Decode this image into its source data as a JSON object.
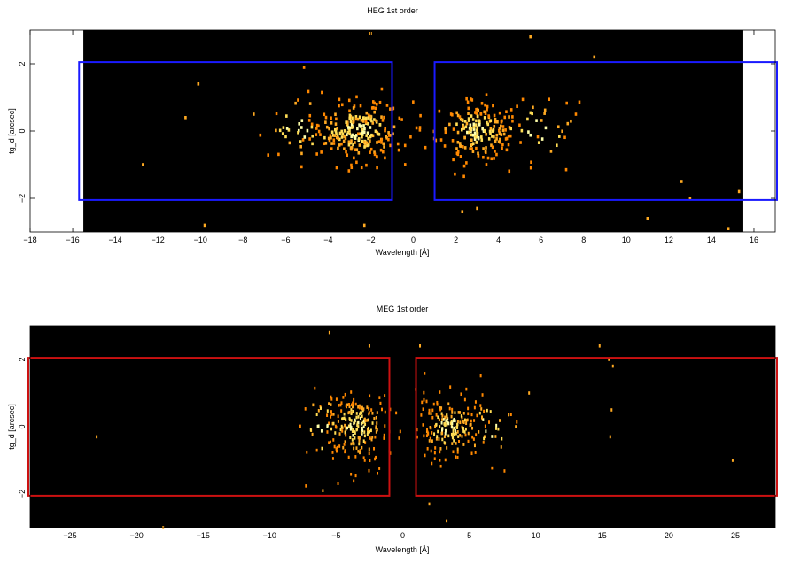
{
  "chart_data": [
    {
      "type": "heatmap",
      "title": "HEG 1st order",
      "xlabel": "Wavelength [Å]",
      "ylabel": "tg_d [arcsec]",
      "xlim": [
        -18,
        17
      ],
      "ylim": [
        -3,
        3
      ],
      "x_ticks": [
        -18,
        -16,
        -14,
        -12,
        -10,
        -8,
        -6,
        -4,
        -2,
        0,
        2,
        4,
        6,
        8,
        10,
        12,
        14,
        16
      ],
      "x_tick_labels": [
        "−18",
        "−16",
        "−14",
        "−12",
        "−10",
        "−8",
        "−6",
        "−4",
        "−2",
        "0",
        "2",
        "4",
        "6",
        "8",
        "10",
        "12",
        "14",
        "16"
      ],
      "y_ticks": [
        -2,
        0,
        2
      ],
      "y_tick_labels": [
        "−2",
        "0",
        "2"
      ],
      "data_extent_x": [
        -15.5,
        15.5
      ],
      "regions": [
        {
          "x": [
            -15.7,
            -1.0
          ],
          "y": [
            -2.05,
            2.05
          ]
        },
        {
          "x": [
            1.0,
            17.5
          ],
          "y": [
            -2.05,
            2.05
          ]
        }
      ],
      "region_color": "#1a1aff",
      "clusters": [
        {
          "x_center": -2.6,
          "x_spread": 1.1,
          "y_spread": 0.45,
          "count": 230
        },
        {
          "x_center": 2.9,
          "x_spread": 0.9,
          "y_spread": 0.45,
          "count": 200
        },
        {
          "x_center": -5.5,
          "x_spread": 1.4,
          "y_spread": 0.6,
          "count": 40
        },
        {
          "x_center": 5.8,
          "x_spread": 1.2,
          "y_spread": 0.55,
          "count": 35
        }
      ],
      "outliers": [
        [
          -12.7,
          -1.0
        ],
        [
          -10.7,
          0.4
        ],
        [
          -10.1,
          1.4
        ],
        [
          -9.8,
          -2.8
        ],
        [
          -2.0,
          2.9
        ],
        [
          5.5,
          2.8
        ],
        [
          8.5,
          2.2
        ],
        [
          11.0,
          -2.6
        ],
        [
          12.6,
          -1.5
        ],
        [
          13.0,
          -2.0
        ],
        [
          14.8,
          -2.9
        ],
        [
          15.3,
          -1.8
        ],
        [
          -2.3,
          -2.8
        ],
        [
          2.3,
          -2.4
        ],
        [
          3.0,
          -2.3
        ],
        [
          -7.5,
          0.5
        ]
      ],
      "colormap": [
        "#ff8800",
        "#ffaa22",
        "#ffdd55",
        "#ffffaa"
      ],
      "background": "#000000"
    },
    {
      "type": "heatmap",
      "title": "MEG 1st order",
      "xlabel": "Wavelength [Å]",
      "ylabel": "tg_d [arcsec]",
      "xlim": [
        -28,
        28
      ],
      "ylim": [
        -3,
        3
      ],
      "x_ticks": [
        -25,
        -20,
        -15,
        -10,
        -5,
        0,
        5,
        10,
        15,
        20,
        25
      ],
      "x_tick_labels": [
        "−25",
        "−20",
        "−15",
        "−10",
        "−5",
        "0",
        "5",
        "10",
        "15",
        "20",
        "25"
      ],
      "y_ticks": [
        -2,
        0,
        2
      ],
      "y_tick_labels": [
        "−2",
        "0",
        "2"
      ],
      "data_extent_x": [
        -28,
        28
      ],
      "regions": [
        {
          "x": [
            -28.5,
            -1.0
          ],
          "y": [
            -2.05,
            2.05
          ]
        },
        {
          "x": [
            1.0,
            28.5
          ],
          "y": [
            -2.05,
            2.05
          ]
        }
      ],
      "region_color": "#cc1111",
      "clusters": [
        {
          "x_center": -3.5,
          "x_spread": 1.2,
          "y_spread": 0.5,
          "count": 200
        },
        {
          "x_center": 3.5,
          "x_spread": 1.2,
          "y_spread": 0.45,
          "count": 180
        },
        {
          "x_center": -6.0,
          "x_spread": 1.0,
          "y_spread": 0.6,
          "count": 30
        },
        {
          "x_center": 6.5,
          "x_spread": 1.1,
          "y_spread": 0.55,
          "count": 30
        }
      ],
      "outliers": [
        [
          -23.0,
          -0.3
        ],
        [
          -18.0,
          -3.0
        ],
        [
          -5.5,
          2.8
        ],
        [
          -2.5,
          2.4
        ],
        [
          -6.0,
          -1.9
        ],
        [
          1.3,
          2.4
        ],
        [
          2.0,
          -2.3
        ],
        [
          3.3,
          -2.8
        ],
        [
          14.8,
          2.4
        ],
        [
          15.5,
          2.0
        ],
        [
          15.8,
          1.8
        ],
        [
          15.7,
          0.5
        ],
        [
          15.6,
          -0.3
        ],
        [
          24.8,
          -1.0
        ],
        [
          9.5,
          1.0
        ],
        [
          8.5,
          0.0
        ]
      ],
      "colormap": [
        "#ff8800",
        "#ffaa22",
        "#ffdd55",
        "#ffffaa"
      ],
      "background": "#000000"
    }
  ]
}
